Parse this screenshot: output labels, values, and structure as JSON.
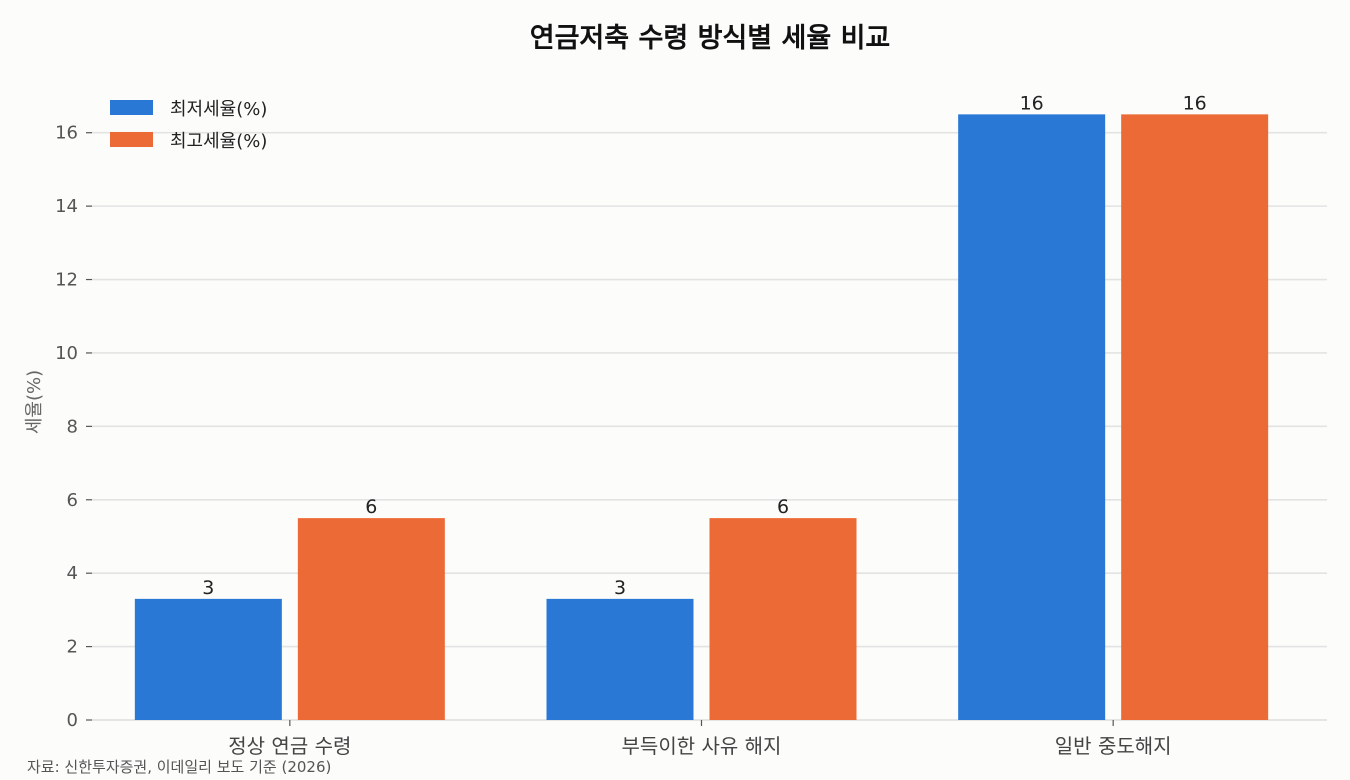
{
  "chart_data": {
    "type": "bar",
    "title": "연금저축 수령 방식별 세율 비교",
    "xlabel": "",
    "ylabel": "세율(%)",
    "categories": [
      "정상 연금 수령",
      "부득이한 사유 해지",
      "일반 중도해지"
    ],
    "series": [
      {
        "name": "최저세율(%)",
        "values": [
          3.3,
          3.3,
          16.5
        ],
        "labels": [
          "3",
          "3",
          "16"
        ],
        "color": "#2a78d6"
      },
      {
        "name": "최고세율(%)",
        "values": [
          5.5,
          5.5,
          16.5
        ],
        "labels": [
          "6",
          "6",
          "16"
        ],
        "color": "#eb6a35"
      }
    ],
    "ylim": [
      0,
      17.3
    ],
    "yticks": [
      0,
      2,
      4,
      6,
      8,
      10,
      12,
      14,
      16
    ],
    "grid": true,
    "legend_position": "top-left",
    "source": "자료: 신한투자증권, 이데일리 보도 기준 (2026)"
  }
}
